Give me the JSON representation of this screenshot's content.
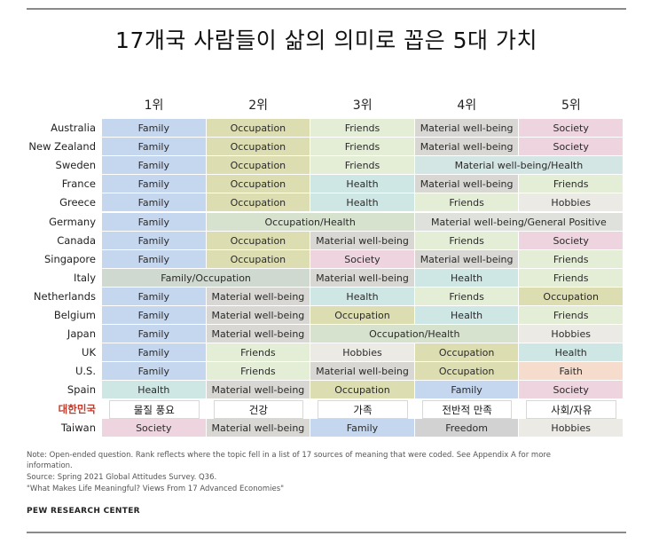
{
  "title": "17개국 사람들이 삶의 의미로 꼽은 5대 가치",
  "chart_data": {
    "type": "table",
    "columns": [
      "1위",
      "2위",
      "3위",
      "4위",
      "5위"
    ],
    "rows": [
      {
        "country": "Australia",
        "cells": [
          {
            "text": "Family",
            "span": 1,
            "color": "#c5d6ef"
          },
          {
            "text": "Occupation",
            "span": 1,
            "color": "#dcddb1"
          },
          {
            "text": "Friends",
            "span": 1,
            "color": "#e4eed7"
          },
          {
            "text": "Material well-being",
            "span": 1,
            "color": "#d8d7d3"
          },
          {
            "text": "Society",
            "span": 1,
            "color": "#eed4de"
          }
        ]
      },
      {
        "country": "New Zealand",
        "cells": [
          {
            "text": "Family",
            "span": 1,
            "color": "#c5d6ef"
          },
          {
            "text": "Occupation",
            "span": 1,
            "color": "#dcddb1"
          },
          {
            "text": "Friends",
            "span": 1,
            "color": "#e4eed7"
          },
          {
            "text": "Material well-being",
            "span": 1,
            "color": "#d8d7d3"
          },
          {
            "text": "Society",
            "span": 1,
            "color": "#eed4de"
          }
        ]
      },
      {
        "country": "Sweden",
        "cells": [
          {
            "text": "Family",
            "span": 1,
            "color": "#c5d6ef"
          },
          {
            "text": "Occupation",
            "span": 1,
            "color": "#dcddb1"
          },
          {
            "text": "Friends",
            "span": 1,
            "color": "#e4eed7"
          },
          {
            "text": "Material well-being/Health",
            "span": 2,
            "color": "#d4e6e3"
          }
        ]
      },
      {
        "country": "France",
        "cells": [
          {
            "text": "Family",
            "span": 1,
            "color": "#c5d6ef"
          },
          {
            "text": "Occupation",
            "span": 1,
            "color": "#dcddb1"
          },
          {
            "text": "Health",
            "span": 1,
            "color": "#cfe7e4"
          },
          {
            "text": "Material well-being",
            "span": 1,
            "color": "#d8d7d3"
          },
          {
            "text": "Friends",
            "span": 1,
            "color": "#e4eed7"
          }
        ]
      },
      {
        "country": "Greece",
        "cells": [
          {
            "text": "Family",
            "span": 1,
            "color": "#c5d6ef"
          },
          {
            "text": "Occupation",
            "span": 1,
            "color": "#dcddb1"
          },
          {
            "text": "Health",
            "span": 1,
            "color": "#cfe7e4"
          },
          {
            "text": "Friends",
            "span": 1,
            "color": "#e4eed7"
          },
          {
            "text": "Hobbies",
            "span": 1,
            "color": "#eceae5"
          }
        ]
      },
      {
        "country": "Germany",
        "cells": [
          {
            "text": "Family",
            "span": 1,
            "color": "#c5d6ef"
          },
          {
            "text": "Occupation/Health",
            "span": 2,
            "color": "#d6e2cd"
          },
          {
            "text": "Material well-being/General Positive",
            "span": 2,
            "color": "#dfe2dc"
          }
        ]
      },
      {
        "country": "Canada",
        "cells": [
          {
            "text": "Family",
            "span": 1,
            "color": "#c5d6ef"
          },
          {
            "text": "Occupation",
            "span": 1,
            "color": "#dcddb1"
          },
          {
            "text": "Material well-being",
            "span": 1,
            "color": "#d8d7d3"
          },
          {
            "text": "Friends",
            "span": 1,
            "color": "#e4eed7"
          },
          {
            "text": "Society",
            "span": 1,
            "color": "#eed4de"
          }
        ]
      },
      {
        "country": "Singapore",
        "cells": [
          {
            "text": "Family",
            "span": 1,
            "color": "#c5d6ef"
          },
          {
            "text": "Occupation",
            "span": 1,
            "color": "#dcddb1"
          },
          {
            "text": "Society",
            "span": 1,
            "color": "#eed4de"
          },
          {
            "text": "Material well-being",
            "span": 1,
            "color": "#d8d7d3"
          },
          {
            "text": "Friends",
            "span": 1,
            "color": "#e4eed7"
          }
        ]
      },
      {
        "country": "Italy",
        "cells": [
          {
            "text": "Family/Occupation",
            "span": 2,
            "color": "#d0d9d0"
          },
          {
            "text": "Material well-being",
            "span": 1,
            "color": "#d8d7d3"
          },
          {
            "text": "Health",
            "span": 1,
            "color": "#cfe7e4"
          },
          {
            "text": "Friends",
            "span": 1,
            "color": "#e4eed7"
          }
        ]
      },
      {
        "country": "Netherlands",
        "cells": [
          {
            "text": "Family",
            "span": 1,
            "color": "#c5d6ef"
          },
          {
            "text": "Material well-being",
            "span": 1,
            "color": "#d8d7d3"
          },
          {
            "text": "Health",
            "span": 1,
            "color": "#cfe7e4"
          },
          {
            "text": "Friends",
            "span": 1,
            "color": "#e4eed7"
          },
          {
            "text": "Occupation",
            "span": 1,
            "color": "#dcddb1"
          }
        ]
      },
      {
        "country": "Belgium",
        "cells": [
          {
            "text": "Family",
            "span": 1,
            "color": "#c5d6ef"
          },
          {
            "text": "Material well-being",
            "span": 1,
            "color": "#d8d7d3"
          },
          {
            "text": "Occupation",
            "span": 1,
            "color": "#dcddb1"
          },
          {
            "text": "Health",
            "span": 1,
            "color": "#cfe7e4"
          },
          {
            "text": "Friends",
            "span": 1,
            "color": "#e4eed7"
          }
        ]
      },
      {
        "country": "Japan",
        "cells": [
          {
            "text": "Family",
            "span": 1,
            "color": "#c5d6ef"
          },
          {
            "text": "Material well-being",
            "span": 1,
            "color": "#d8d7d3"
          },
          {
            "text": "Occupation/Health",
            "span": 2,
            "color": "#d6e2cd"
          },
          {
            "text": "Hobbies",
            "span": 1,
            "color": "#eceae5"
          }
        ]
      },
      {
        "country": "UK",
        "cells": [
          {
            "text": "Family",
            "span": 1,
            "color": "#c5d6ef"
          },
          {
            "text": "Friends",
            "span": 1,
            "color": "#e4eed7"
          },
          {
            "text": "Hobbies",
            "span": 1,
            "color": "#eceae5"
          },
          {
            "text": "Occupation",
            "span": 1,
            "color": "#dcddb1"
          },
          {
            "text": "Health",
            "span": 1,
            "color": "#cfe7e4"
          }
        ]
      },
      {
        "country": "U.S.",
        "cells": [
          {
            "text": "Family",
            "span": 1,
            "color": "#c5d6ef"
          },
          {
            "text": "Friends",
            "span": 1,
            "color": "#e4eed7"
          },
          {
            "text": "Material well-being",
            "span": 1,
            "color": "#d8d7d3"
          },
          {
            "text": "Occupation",
            "span": 1,
            "color": "#dcddb1"
          },
          {
            "text": "Faith",
            "span": 1,
            "color": "#f5dccc"
          }
        ]
      },
      {
        "country": "Spain",
        "cells": [
          {
            "text": "Health",
            "span": 1,
            "color": "#cfe7e4"
          },
          {
            "text": "Material well-being",
            "span": 1,
            "color": "#d8d7d3"
          },
          {
            "text": "Occupation",
            "span": 1,
            "color": "#dcddb1"
          },
          {
            "text": "Family",
            "span": 1,
            "color": "#c5d6ef"
          },
          {
            "text": "Society",
            "span": 1,
            "color": "#eed4de"
          }
        ]
      },
      {
        "country": "대한민국",
        "highlight": true,
        "cells": [
          {
            "text": "물질 풍요",
            "span": 1,
            "color": "#d8d7d3"
          },
          {
            "text": "건강",
            "span": 1,
            "color": "#cfe7e4"
          },
          {
            "text": "가족",
            "span": 1,
            "color": "#c5d6ef"
          },
          {
            "text": "전반적 만족",
            "span": 1,
            "color": "#e5e5e5"
          },
          {
            "text": "사회/자유",
            "span": 1,
            "color": "#eed4de"
          }
        ]
      },
      {
        "country": "Taiwan",
        "cells": [
          {
            "text": "Society",
            "span": 1,
            "color": "#eed4de"
          },
          {
            "text": "Material well-being",
            "span": 1,
            "color": "#d8d7d3"
          },
          {
            "text": "Family",
            "span": 1,
            "color": "#c5d6ef"
          },
          {
            "text": "Freedom",
            "span": 1,
            "color": "#d2d2d2"
          },
          {
            "text": "Hobbies",
            "span": 1,
            "color": "#eceae5"
          }
        ]
      }
    ]
  },
  "notes": {
    "line1": "Note: Open-ended question. Rank reflects where the topic fell in a list of 17 sources of meaning that were coded. See Appendix A for more",
    "line2": "information.",
    "source": "Source: Spring 2021 Global Attitudes Survey. Q36.",
    "report": "\"What Makes Life Meaningful? Views From 17 Advanced Economies\"",
    "brand": "PEW RESEARCH CENTER"
  }
}
